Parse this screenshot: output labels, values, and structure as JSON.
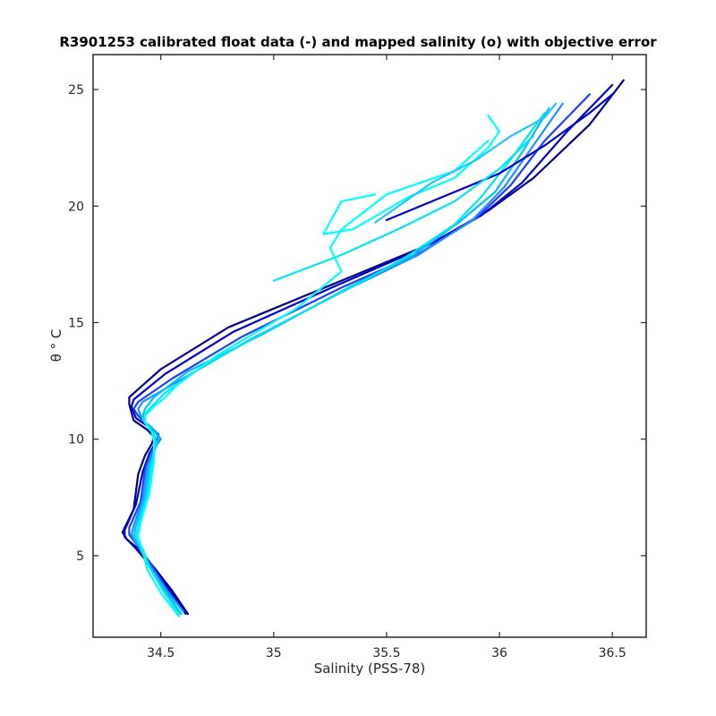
{
  "chart_data": {
    "type": "line",
    "title": "R3901253 calibrated float data (-) and mapped salinity (o) with objective error",
    "xlabel": "Salinity (PSS-78)",
    "ylabel": "θ ° C",
    "xlim": [
      34.2,
      36.65
    ],
    "ylim": [
      1.5,
      26.5
    ],
    "xticks": [
      "34.5",
      "35",
      "35.5",
      "36",
      "36.5"
    ],
    "yticks": [
      "5",
      "10",
      "15",
      "20",
      "25"
    ],
    "grid": false,
    "legend": "none",
    "colormap": [
      "#00008b",
      "#0000cd",
      "#1e40ff",
      "#1e90ff",
      "#00bfff",
      "#00e5ee",
      "#00ffff"
    ],
    "series": [
      {
        "color": "#00008b",
        "x": [
          34.62,
          34.55,
          34.47,
          34.4,
          34.35,
          34.33,
          34.38,
          34.4,
          34.43,
          34.46,
          34.47,
          34.44,
          34.38,
          34.36,
          34.36,
          34.5,
          34.8,
          35.3,
          35.7,
          35.95,
          36.15,
          36.4,
          36.55
        ],
        "y": [
          2.5,
          3.5,
          4.5,
          5.3,
          5.7,
          6.0,
          7.0,
          8.5,
          9.3,
          9.8,
          10.1,
          10.4,
          10.8,
          11.5,
          11.8,
          13.0,
          14.8,
          16.8,
          18.4,
          19.8,
          21.2,
          23.5,
          25.4
        ]
      },
      {
        "color": "#0000cd",
        "x": [
          34.61,
          34.54,
          34.46,
          34.39,
          34.34,
          34.34,
          34.39,
          34.42,
          34.45,
          34.48,
          34.49,
          34.45,
          34.39,
          34.37,
          34.38,
          34.52,
          34.82,
          35.28,
          35.66,
          35.92,
          36.1,
          36.3,
          36.5
        ],
        "y": [
          2.5,
          3.5,
          4.5,
          5.3,
          5.8,
          6.1,
          7.2,
          8.6,
          9.4,
          9.9,
          10.2,
          10.5,
          10.9,
          11.4,
          11.7,
          12.8,
          14.6,
          16.6,
          18.2,
          19.6,
          21.0,
          23.2,
          25.2
        ]
      },
      {
        "color": "#1e40ff",
        "x": [
          34.6,
          34.53,
          34.46,
          34.4,
          34.36,
          34.36,
          34.41,
          34.43,
          34.46,
          34.49,
          34.48,
          34.44,
          34.4,
          34.38,
          34.4,
          34.55,
          34.86,
          35.3,
          35.65,
          35.9,
          36.05,
          36.2,
          36.4
        ],
        "y": [
          2.6,
          3.5,
          4.6,
          5.4,
          5.9,
          6.2,
          7.3,
          8.7,
          9.5,
          9.9,
          10.3,
          10.6,
          11.0,
          11.3,
          11.6,
          12.6,
          14.4,
          16.5,
          18.0,
          19.5,
          20.9,
          22.8,
          24.8
        ]
      },
      {
        "color": "#1e90ff",
        "x": [
          34.6,
          34.52,
          34.45,
          34.4,
          34.37,
          34.38,
          34.42,
          34.44,
          34.47,
          34.5,
          34.47,
          34.43,
          34.41,
          34.4,
          34.42,
          34.58,
          34.9,
          35.32,
          35.64,
          35.88,
          36.02,
          36.15,
          36.28
        ],
        "y": [
          2.6,
          3.6,
          4.6,
          5.4,
          5.9,
          6.3,
          7.4,
          8.8,
          9.6,
          10.0,
          10.4,
          10.7,
          11.0,
          11.3,
          11.6,
          12.5,
          14.3,
          16.4,
          17.9,
          19.4,
          20.8,
          22.6,
          24.4
        ]
      },
      {
        "color": "#00bfff",
        "x": [
          34.59,
          34.52,
          34.45,
          34.41,
          34.38,
          34.39,
          34.43,
          34.45,
          34.48,
          34.49,
          34.46,
          34.42,
          34.42,
          34.43,
          34.47,
          34.62,
          34.95,
          35.35,
          35.62,
          35.82,
          35.98,
          36.1,
          36.22
        ],
        "y": [
          2.5,
          3.5,
          4.5,
          5.3,
          5.8,
          6.3,
          7.5,
          8.9,
          9.7,
          10.1,
          10.5,
          10.8,
          11.0,
          11.3,
          11.8,
          12.9,
          14.5,
          16.6,
          17.9,
          19.3,
          20.6,
          22.3,
          24.2
        ]
      },
      {
        "color": "#00e5ee",
        "x": [
          34.58,
          34.51,
          34.45,
          34.42,
          34.39,
          34.4,
          34.44,
          34.46,
          34.48,
          34.47,
          34.44,
          34.42,
          34.44,
          34.48,
          34.52,
          34.68,
          35.0,
          35.4,
          35.6,
          35.8,
          35.92,
          36.05,
          36.2
        ],
        "y": [
          2.5,
          3.5,
          4.5,
          5.3,
          5.8,
          6.3,
          7.6,
          9.0,
          9.8,
          10.2,
          10.6,
          10.9,
          11.2,
          11.6,
          12.0,
          13.1,
          14.8,
          16.8,
          17.9,
          19.2,
          20.4,
          22.0,
          24.0
        ]
      },
      {
        "color": "#00ffff",
        "x": [
          34.58,
          34.5,
          34.44,
          34.42,
          34.4,
          34.41,
          34.45,
          34.47,
          34.47,
          34.46,
          34.43,
          34.43,
          34.47,
          34.52,
          34.57,
          34.75,
          35.1,
          35.3,
          35.25,
          35.3,
          35.5,
          35.8,
          35.95
        ],
        "y": [
          2.4,
          3.4,
          4.4,
          5.2,
          5.8,
          6.4,
          7.7,
          9.1,
          9.9,
          10.3,
          10.7,
          11.0,
          11.4,
          11.8,
          12.3,
          13.6,
          15.6,
          17.2,
          18.2,
          19.0,
          20.5,
          21.5,
          22.8
        ]
      },
      {
        "color": "#00ffff",
        "x": [
          35.45,
          35.3,
          35.22,
          35.35,
          35.6,
          35.8,
          35.95,
          36.0,
          35.95
        ],
        "y": [
          20.5,
          20.2,
          18.8,
          19.0,
          20.4,
          21.2,
          22.5,
          23.2,
          23.9
        ]
      },
      {
        "color": "#1ec8ff",
        "x": [
          35.45,
          35.7,
          35.9,
          36.05,
          36.2,
          36.25
        ],
        "y": [
          19.3,
          21.0,
          22.0,
          23.0,
          23.8,
          24.4
        ]
      },
      {
        "color": "#0000cd",
        "x": [
          35.5,
          35.8,
          36.0,
          36.2,
          36.4,
          36.5
        ],
        "y": [
          19.4,
          20.6,
          21.4,
          22.6,
          24.0,
          24.8
        ]
      },
      {
        "color": "#00e5ee",
        "x": [
          35.0,
          35.3,
          35.55,
          35.8,
          36.0,
          36.15
        ],
        "y": [
          16.8,
          17.9,
          19.0,
          20.2,
          21.6,
          23.0
        ]
      }
    ]
  }
}
